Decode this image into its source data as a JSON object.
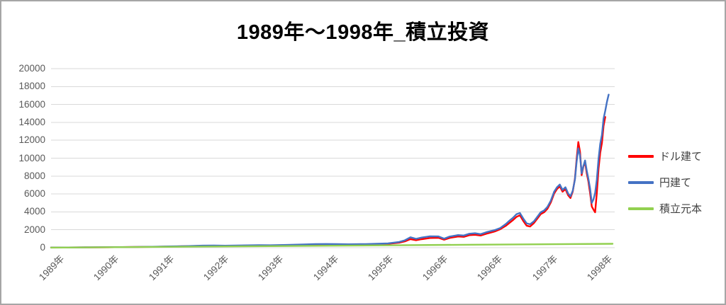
{
  "title": "1989年～1998年_積立投資",
  "chart_data": {
    "type": "line",
    "title": "1989年～1998年_積立投資",
    "x_tick_labels": [
      "1989年",
      "1990年",
      "1991年",
      "1992年",
      "1993年",
      "1994年",
      "1995年",
      "1996年",
      "1996年",
      "1997年",
      "1998年"
    ],
    "y_ticks": [
      0,
      2000,
      4000,
      6000,
      8000,
      10000,
      12000,
      14000,
      16000,
      18000,
      20000
    ],
    "ylim": [
      0,
      20000
    ],
    "grid": "horizontal",
    "gridline_color": "#d9d9d9",
    "axis_label_color": "#595959",
    "legend_position": "right",
    "x_unit": "fraction of x-axis span (1989→1998)",
    "series": [
      {
        "id": "dollar",
        "name": "ドル建て",
        "color": "#ff0000",
        "points": [
          [
            0.0,
            12
          ],
          [
            0.03,
            22
          ],
          [
            0.06,
            34
          ],
          [
            0.1,
            50
          ],
          [
            0.14,
            68
          ],
          [
            0.18,
            95
          ],
          [
            0.21,
            125
          ],
          [
            0.24,
            155
          ],
          [
            0.27,
            205
          ],
          [
            0.29,
            215
          ],
          [
            0.31,
            200
          ],
          [
            0.34,
            225
          ],
          [
            0.37,
            258
          ],
          [
            0.39,
            245
          ],
          [
            0.42,
            275
          ],
          [
            0.45,
            325
          ],
          [
            0.47,
            355
          ],
          [
            0.49,
            372
          ],
          [
            0.51,
            358
          ],
          [
            0.53,
            344
          ],
          [
            0.56,
            362
          ],
          [
            0.58,
            392
          ],
          [
            0.6,
            425
          ],
          [
            0.62,
            560
          ],
          [
            0.63,
            700
          ],
          [
            0.64,
            960
          ],
          [
            0.65,
            830
          ],
          [
            0.66,
            950
          ],
          [
            0.675,
            1080
          ],
          [
            0.69,
            1110
          ],
          [
            0.7,
            890
          ],
          [
            0.71,
            1090
          ],
          [
            0.725,
            1250
          ],
          [
            0.735,
            1210
          ],
          [
            0.745,
            1400
          ],
          [
            0.755,
            1440
          ],
          [
            0.765,
            1360
          ],
          [
            0.775,
            1550
          ],
          [
            0.785,
            1720
          ],
          [
            0.79,
            1810
          ],
          [
            0.8,
            2060
          ],
          [
            0.81,
            2450
          ],
          [
            0.817,
            2800
          ],
          [
            0.823,
            3100
          ],
          [
            0.829,
            3450
          ],
          [
            0.835,
            3620
          ],
          [
            0.841,
            2980
          ],
          [
            0.847,
            2460
          ],
          [
            0.853,
            2360
          ],
          [
            0.86,
            2750
          ],
          [
            0.866,
            3250
          ],
          [
            0.872,
            3750
          ],
          [
            0.878,
            3950
          ],
          [
            0.884,
            4350
          ],
          [
            0.89,
            5050
          ],
          [
            0.896,
            6050
          ],
          [
            0.901,
            6550
          ],
          [
            0.906,
            6850
          ],
          [
            0.911,
            6250
          ],
          [
            0.916,
            6550
          ],
          [
            0.921,
            5850
          ],
          [
            0.925,
            5550
          ],
          [
            0.929,
            6250
          ],
          [
            0.933,
            7700
          ],
          [
            0.936,
            9900
          ],
          [
            0.939,
            11800
          ],
          [
            0.942,
            10700
          ],
          [
            0.945,
            8100
          ],
          [
            0.948,
            9050
          ],
          [
            0.951,
            9550
          ],
          [
            0.954,
            8300
          ],
          [
            0.957,
            7400
          ],
          [
            0.96,
            6100
          ],
          [
            0.963,
            4600
          ],
          [
            0.966,
            4250
          ],
          [
            0.969,
            3950
          ],
          [
            0.972,
            6100
          ],
          [
            0.975,
            8800
          ],
          [
            0.978,
            10600
          ],
          [
            0.981,
            11700
          ],
          [
            0.984,
            13600
          ],
          [
            0.987,
            14600
          ]
        ]
      },
      {
        "id": "yen",
        "name": "円建て",
        "color": "#4472c4",
        "points": [
          [
            0.0,
            15
          ],
          [
            0.03,
            25
          ],
          [
            0.06,
            38
          ],
          [
            0.1,
            55
          ],
          [
            0.14,
            75
          ],
          [
            0.18,
            105
          ],
          [
            0.21,
            140
          ],
          [
            0.24,
            175
          ],
          [
            0.27,
            230
          ],
          [
            0.29,
            245
          ],
          [
            0.31,
            225
          ],
          [
            0.34,
            250
          ],
          [
            0.37,
            285
          ],
          [
            0.39,
            270
          ],
          [
            0.42,
            305
          ],
          [
            0.45,
            360
          ],
          [
            0.47,
            395
          ],
          [
            0.49,
            415
          ],
          [
            0.51,
            398
          ],
          [
            0.53,
            382
          ],
          [
            0.56,
            405
          ],
          [
            0.58,
            440
          ],
          [
            0.6,
            480
          ],
          [
            0.62,
            640
          ],
          [
            0.63,
            820
          ],
          [
            0.64,
            1160
          ],
          [
            0.65,
            990
          ],
          [
            0.66,
            1130
          ],
          [
            0.675,
            1270
          ],
          [
            0.69,
            1260
          ],
          [
            0.7,
            1010
          ],
          [
            0.71,
            1240
          ],
          [
            0.725,
            1410
          ],
          [
            0.735,
            1360
          ],
          [
            0.745,
            1560
          ],
          [
            0.755,
            1610
          ],
          [
            0.765,
            1510
          ],
          [
            0.775,
            1720
          ],
          [
            0.785,
            1880
          ],
          [
            0.79,
            1960
          ],
          [
            0.8,
            2200
          ],
          [
            0.81,
            2650
          ],
          [
            0.817,
            3050
          ],
          [
            0.823,
            3350
          ],
          [
            0.829,
            3750
          ],
          [
            0.835,
            3870
          ],
          [
            0.841,
            3250
          ],
          [
            0.847,
            2720
          ],
          [
            0.853,
            2620
          ],
          [
            0.86,
            2950
          ],
          [
            0.866,
            3450
          ],
          [
            0.872,
            3950
          ],
          [
            0.878,
            4150
          ],
          [
            0.884,
            4550
          ],
          [
            0.89,
            5250
          ],
          [
            0.896,
            6250
          ],
          [
            0.901,
            6750
          ],
          [
            0.906,
            7050
          ],
          [
            0.911,
            6450
          ],
          [
            0.916,
            6750
          ],
          [
            0.921,
            6050
          ],
          [
            0.925,
            5750
          ],
          [
            0.929,
            6350
          ],
          [
            0.933,
            7600
          ],
          [
            0.936,
            9600
          ],
          [
            0.939,
            11100
          ],
          [
            0.942,
            10300
          ],
          [
            0.945,
            8300
          ],
          [
            0.948,
            9100
          ],
          [
            0.951,
            9750
          ],
          [
            0.954,
            8600
          ],
          [
            0.957,
            7700
          ],
          [
            0.96,
            6600
          ],
          [
            0.963,
            5000
          ],
          [
            0.966,
            5400
          ],
          [
            0.969,
            6100
          ],
          [
            0.972,
            7600
          ],
          [
            0.975,
            9900
          ],
          [
            0.978,
            11600
          ],
          [
            0.981,
            12600
          ],
          [
            0.984,
            14400
          ],
          [
            0.987,
            15300
          ],
          [
            0.99,
            16300
          ],
          [
            0.993,
            17100
          ]
        ]
      },
      {
        "id": "principal",
        "name": "積立元本",
        "color": "#92d050",
        "points": [
          [
            0.0,
            5
          ],
          [
            0.25,
            112
          ],
          [
            0.5,
            220
          ],
          [
            0.75,
            330
          ],
          [
            1.0,
            435
          ]
        ]
      }
    ]
  }
}
